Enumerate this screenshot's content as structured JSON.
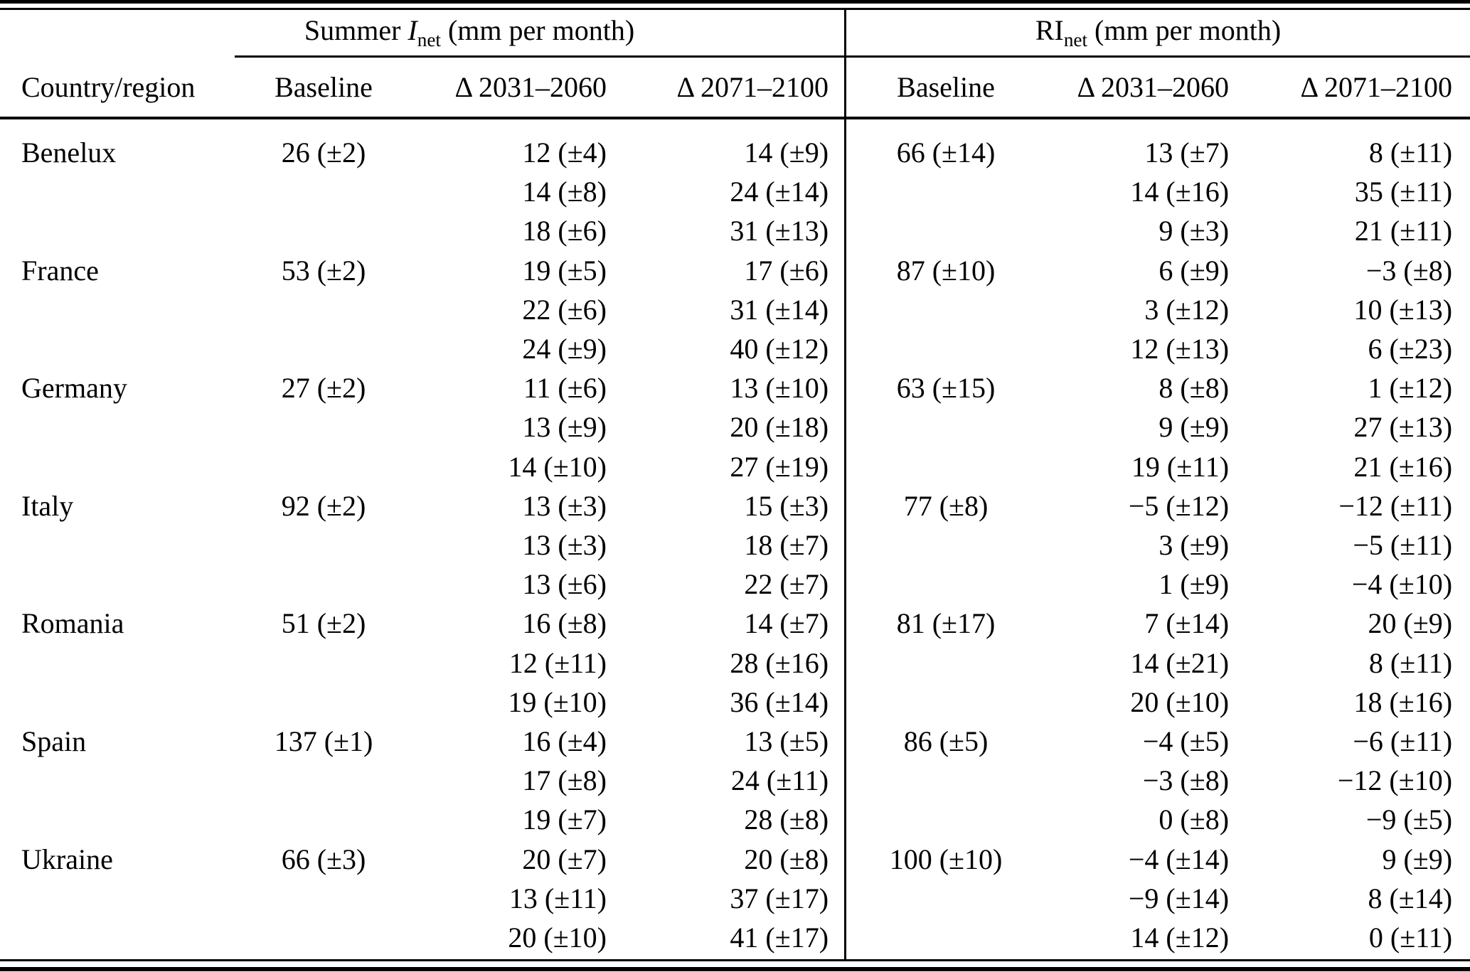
{
  "table": {
    "groups": [
      {
        "prefix": "Summer ",
        "symbol": "I",
        "symbol_sub": "net",
        "suffix": " (mm per month)"
      },
      {
        "prefix": "",
        "symbol": "RI",
        "symbol_sub": "net",
        "suffix": " (mm per month)"
      }
    ],
    "header": {
      "country_col": "Country/region",
      "sub_columns": [
        "Baseline",
        "Δ 2031–2060",
        "Δ 2071–2100",
        "Baseline",
        "Δ 2031–2060",
        "Δ 2071–2100"
      ]
    },
    "rows": [
      {
        "country": "Benelux",
        "values": [
          "26 (±2)",
          "12 (±4)",
          "14 (±9)",
          "66 (±14)",
          "13 (±7)",
          "8 (±11)"
        ]
      },
      {
        "country": "",
        "values": [
          "",
          "14 (±8)",
          "24 (±14)",
          "",
          "14 (±16)",
          "35 (±11)"
        ]
      },
      {
        "country": "",
        "values": [
          "",
          "18 (±6)",
          "31 (±13)",
          "",
          "9 (±3)",
          "21 (±11)"
        ]
      },
      {
        "country": "France",
        "values": [
          "53 (±2)",
          "19 (±5)",
          "17 (±6)",
          "87 (±10)",
          "6 (±9)",
          "−3 (±8)"
        ]
      },
      {
        "country": "",
        "values": [
          "",
          "22 (±6)",
          "31 (±14)",
          "",
          "3 (±12)",
          "10 (±13)"
        ]
      },
      {
        "country": "",
        "values": [
          "",
          "24 (±9)",
          "40 (±12)",
          "",
          "12 (±13)",
          "6 (±23)"
        ]
      },
      {
        "country": "Germany",
        "values": [
          "27 (±2)",
          "11 (±6)",
          "13 (±10)",
          "63 (±15)",
          "8 (±8)",
          "1 (±12)"
        ]
      },
      {
        "country": "",
        "values": [
          "",
          "13 (±9)",
          "20 (±18)",
          "",
          "9 (±9)",
          "27 (±13)"
        ]
      },
      {
        "country": "",
        "values": [
          "",
          "14 (±10)",
          "27 (±19)",
          "",
          "19 (±11)",
          "21 (±16)"
        ]
      },
      {
        "country": "Italy",
        "values": [
          "92 (±2)",
          "13 (±3)",
          "15 (±3)",
          "77 (±8)",
          "−5 (±12)",
          "−12 (±11)"
        ]
      },
      {
        "country": "",
        "values": [
          "",
          "13 (±3)",
          "18 (±7)",
          "",
          "3 (±9)",
          "−5 (±11)"
        ]
      },
      {
        "country": "",
        "values": [
          "",
          "13 (±6)",
          "22 (±7)",
          "",
          "1 (±9)",
          "−4 (±10)"
        ]
      },
      {
        "country": "Romania",
        "values": [
          "51 (±2)",
          "16 (±8)",
          "14 (±7)",
          "81 (±17)",
          "7 (±14)",
          "20 (±9)"
        ]
      },
      {
        "country": "",
        "values": [
          "",
          "12 (±11)",
          "28 (±16)",
          "",
          "14 (±21)",
          "8 (±11)"
        ]
      },
      {
        "country": "",
        "values": [
          "",
          "19 (±10)",
          "36 (±14)",
          "",
          "20 (±10)",
          "18 (±16)"
        ]
      },
      {
        "country": "Spain",
        "values": [
          "137 (±1)",
          "16 (±4)",
          "13 (±5)",
          "86 (±5)",
          "−4 (±5)",
          "−6 (±11)"
        ]
      },
      {
        "country": "",
        "values": [
          "",
          "17 (±8)",
          "24 (±11)",
          "",
          "−3 (±8)",
          "−12 (±10)"
        ]
      },
      {
        "country": "",
        "values": [
          "",
          "19 (±7)",
          "28 (±8)",
          "",
          "0 (±8)",
          "−9 (±5)"
        ]
      },
      {
        "country": "Ukraine",
        "values": [
          "66 (±3)",
          "20 (±7)",
          "20 (±8)",
          "100 (±10)",
          "−4 (±14)",
          "9 (±9)"
        ]
      },
      {
        "country": "",
        "values": [
          "",
          "13 (±11)",
          "37 (±17)",
          "",
          "−9 (±14)",
          "8 (±14)"
        ]
      },
      {
        "country": "",
        "values": [
          "",
          "20 (±10)",
          "41 (±17)",
          "",
          "14 (±12)",
          "0 (±11)"
        ]
      }
    ]
  }
}
